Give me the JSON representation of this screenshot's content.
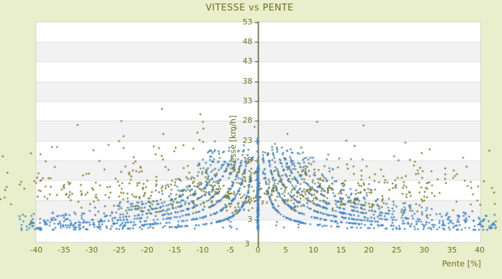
{
  "chart_data": {
    "type": "scatter",
    "title": "VITESSE vs PENTE",
    "xlabel": "Pente [%]",
    "ylabel": "Vitesse [km/h]",
    "legend": "none",
    "x_tick_values": [
      -40,
      -35,
      -30,
      -25,
      -20,
      -15,
      -10,
      -5,
      0,
      5,
      10,
      15,
      20,
      25,
      30,
      35,
      40
    ],
    "x_tick_labels": [
      "-40",
      "-35",
      "-30",
      "-25",
      "-20",
      "-15",
      "-10",
      "-5",
      "0",
      "5",
      "10",
      "15",
      "20",
      "25",
      "30",
      "35",
      "40"
    ],
    "y_tick_values": [
      53,
      48,
      43,
      38,
      33,
      28,
      23,
      18,
      13,
      8,
      3
    ],
    "y_tick_labels": [
      "53",
      "48",
      "43",
      "38",
      "33",
      "28",
      "23",
      "18",
      "13",
      "8",
      "3"
    ],
    "y_axis_bottom_label": "3",
    "xlim": [
      -40.25,
      40.25
    ],
    "ylim": [
      -2.9,
      53
    ],
    "axis_position": "vertical axis drawn at x = 0 (center of plot)",
    "background_bands": "horizontal bands alternating white / light gray every 5 km/h from 53 down to 3",
    "series": [
      {
        "id": "olive",
        "color": "#74741c",
        "marker": "diamond",
        "description": "diffuse cloud of speed-vs-slope samples, x in [-46,46], speed mostly 5-20 km/h, sparse outliers up to ~31 km/h, faint hyperbolic streaks v = 18n/|x|"
      },
      {
        "id": "blue",
        "color": "#3e84c4",
        "marker": "diamond",
        "description": "dense hyperbolic traces v = 18n/|x| (n = 1..10) converging to a 3 km/h floor, plus a dense vertical line at pente = 0 from 0 to ~17 km/h and sparse low-speed floor points"
      }
    ],
    "generator": {
      "seed": 42,
      "hyperbola_formula": "v = c / |x|",
      "blue": {
        "center_line": {
          "count": 170,
          "x_jitter": 0.12,
          "v_min": 0.3,
          "v_max": 17,
          "extra_top": {
            "count": 14,
            "v_min": 17,
            "v_max": 23.5
          }
        },
        "hyperbolas": {
          "c_base": 18,
          "n_list": [
            1,
            2,
            3,
            4,
            5,
            6,
            7,
            8,
            9,
            10
          ],
          "counts_per_side": [
            110,
            110,
            95,
            85,
            75,
            65,
            45,
            35,
            25,
            18
          ],
          "x_max": 43,
          "v_cap": 23.5,
          "v_jitter": 0.015,
          "x_min_floor": 0.55,
          "c_over": 21.5
        },
        "floor": {
          "count": 90,
          "x_abs_min": 3,
          "x_abs_max": 43,
          "v_base": 0.6,
          "v_spread": 1.1
        },
        "stray": {
          "count": 55,
          "x_scale": 30,
          "x_abs_min": 0.8,
          "v_min": 4,
          "v_span": 15
        }
      },
      "olive": {
        "cloud": {
          "count": 640,
          "x_scale": 51,
          "x_clip": 46.5,
          "v_median": 11,
          "v_sigma": 0.33,
          "v_min": 2,
          "v_max": 27
        },
        "curves": {
          "c_base": 18,
          "n_list": [
            2,
            3,
            4,
            5,
            6,
            7,
            8
          ],
          "count_per_side": 14,
          "x_max": 30,
          "v_cap": 16.5,
          "v_min": 4.5,
          "v_jitter": 0.02,
          "c_over": 16
        },
        "outliers": {
          "count": 12,
          "x_min": -33,
          "x_max": 13,
          "v_min": 22.5,
          "v_max": 31.5
        }
      }
    }
  },
  "colors": {
    "page_background": "#e9efcc",
    "plot_background": "#ffffff",
    "band_gray": "#f2f2f2",
    "band_line": "#dfdfdf",
    "plot_border": "#d3d3d3",
    "axis_line": "#45450f",
    "label_text": "#6e6e1e",
    "series_olive": "#74741c",
    "series_blue": "#3e84c4"
  }
}
